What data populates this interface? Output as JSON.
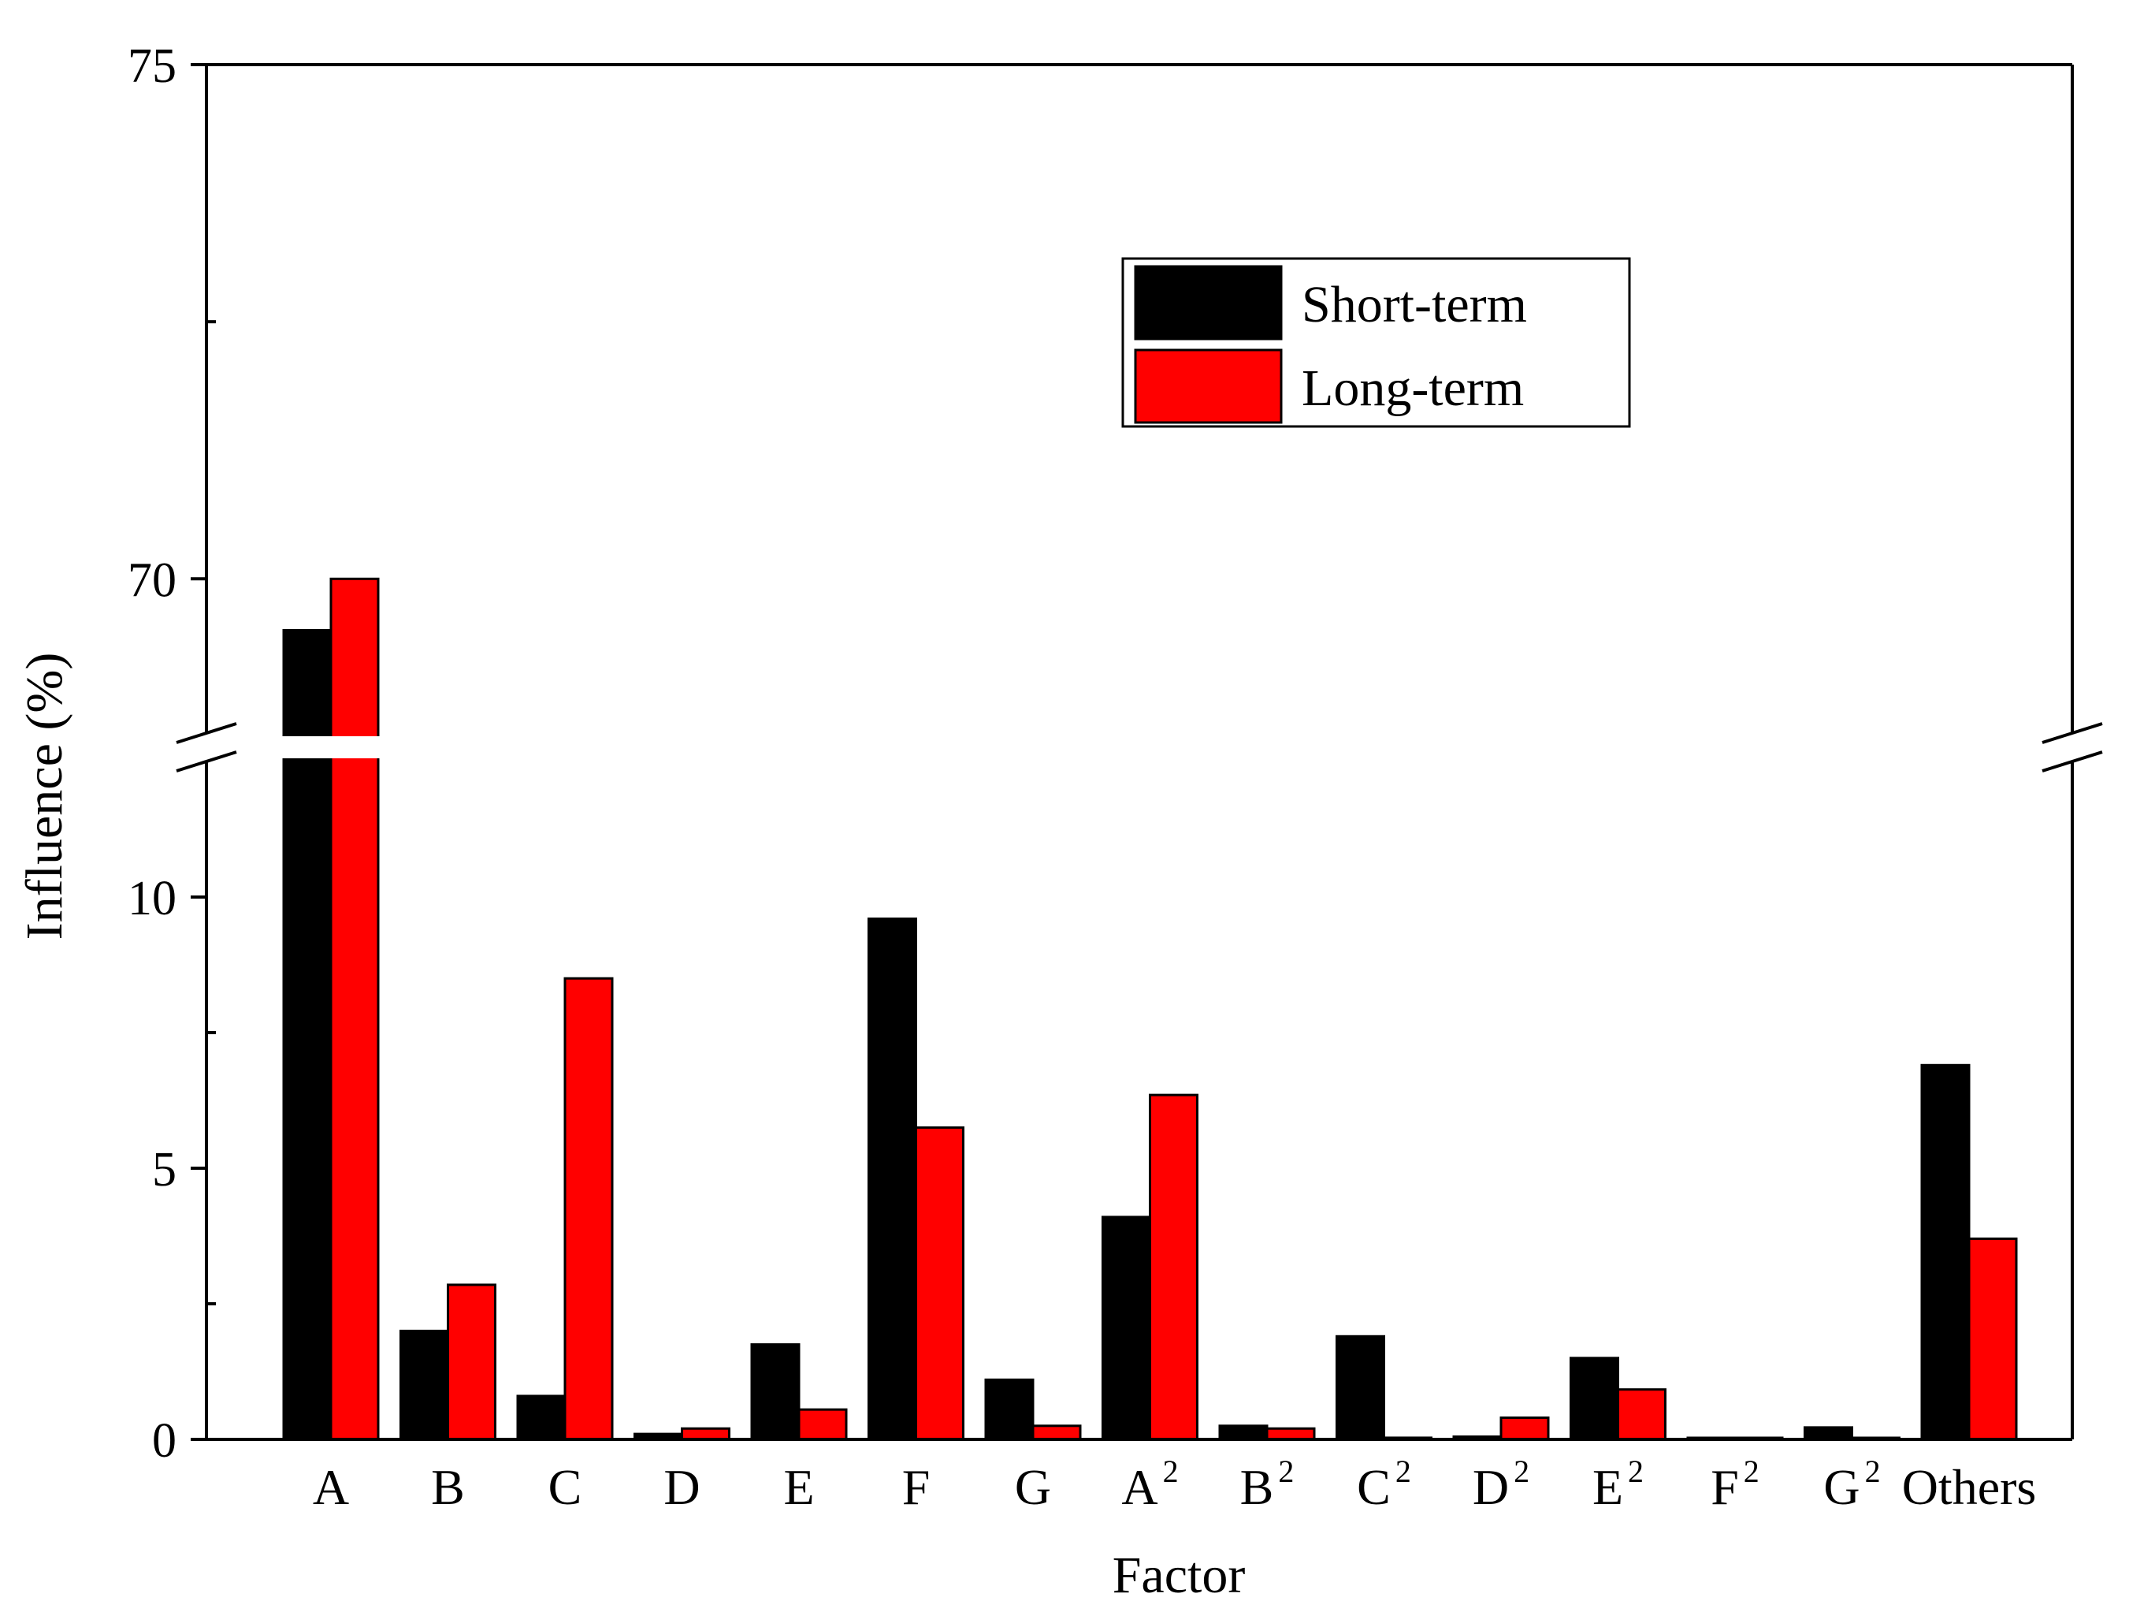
{
  "chart_data": {
    "type": "bar",
    "xlabel": "Factor",
    "ylabel": "Influence (%)",
    "categories": [
      {
        "base": "A",
        "sup": ""
      },
      {
        "base": "B",
        "sup": ""
      },
      {
        "base": "C",
        "sup": ""
      },
      {
        "base": "D",
        "sup": ""
      },
      {
        "base": "E",
        "sup": ""
      },
      {
        "base": "F",
        "sup": ""
      },
      {
        "base": "G",
        "sup": ""
      },
      {
        "base": "A",
        "sup": "2"
      },
      {
        "base": "B",
        "sup": "2"
      },
      {
        "base": "C",
        "sup": "2"
      },
      {
        "base": "D",
        "sup": "2"
      },
      {
        "base": "E",
        "sup": "2"
      },
      {
        "base": "F",
        "sup": "2"
      },
      {
        "base": "G",
        "sup": "2"
      },
      {
        "base": "Others",
        "sup": ""
      }
    ],
    "series": [
      {
        "name": "Short-term",
        "color": "#000000",
        "values": [
          69.5,
          2.0,
          0.8,
          0.1,
          1.75,
          9.6,
          1.1,
          4.1,
          0.25,
          1.9,
          0.05,
          1.5,
          0.02,
          0.22,
          6.9
        ]
      },
      {
        "name": "Long-term",
        "color": "#ff0000",
        "values": [
          70.0,
          2.85,
          8.5,
          0.2,
          0.55,
          5.75,
          0.25,
          6.35,
          0.2,
          0.03,
          0.4,
          0.92,
          0.02,
          0.02,
          3.7
        ]
      }
    ],
    "y_axis": {
      "broken": true,
      "lower_range": [
        0,
        12.5
      ],
      "upper_range": [
        68.5,
        75
      ],
      "tick_labels": [
        "0",
        "5",
        "10",
        "70",
        "75"
      ]
    },
    "legend": {
      "position": "top-right",
      "entries": [
        "Short-term",
        "Long-term"
      ]
    },
    "grid": false
  }
}
